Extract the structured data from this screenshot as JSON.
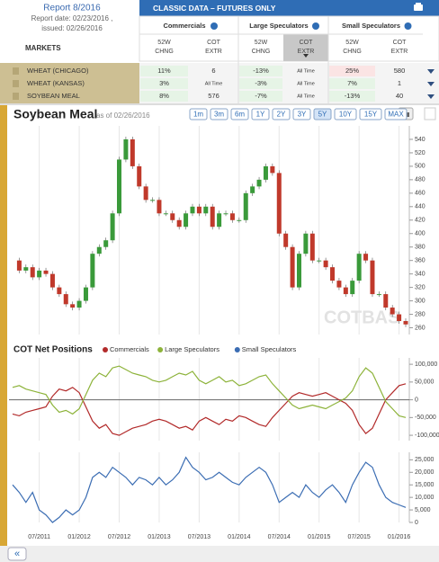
{
  "header": {
    "report": "Report 8/2016",
    "report_date": "Report date: 02/23/2016 ,",
    "issued": "issued: 02/26/2016",
    "markets": "MARKETS",
    "title": "CLASSIC DATA – FUTURES ONLY"
  },
  "table": {
    "groups": [
      "Commercials",
      "Large Speculators",
      "Small Speculators"
    ],
    "columns": [
      [
        "52W",
        "CHNG"
      ],
      [
        "COT",
        "EXTR"
      ],
      [
        "52W",
        "CHNG"
      ],
      [
        "COT",
        "EXTR"
      ],
      [
        "52W",
        "CHNG"
      ],
      [
        "COT",
        "EXTR"
      ]
    ],
    "rows": [
      {
        "market": "WHEAT (CHICAGO)",
        "cells": [
          "11%",
          "6",
          "-13%",
          "All Time",
          "25%",
          "580"
        ]
      },
      {
        "market": "WHEAT (KANSAS)",
        "cells": [
          "3%",
          "All Time",
          "-3%",
          "All Time",
          "7%",
          "1"
        ]
      },
      {
        "market": "SOYBEAN MEAL",
        "cells": [
          "8%",
          "576",
          "-7%",
          "All Time",
          "-13%",
          "40"
        ]
      }
    ]
  },
  "toolbar": {
    "title": "Soybean Meal",
    "as_of": "as of 02/26/2016",
    "ranges": [
      "1m",
      "3m",
      "6m",
      "1Y",
      "2Y",
      "3Y",
      "5Y",
      "10Y",
      "15Y",
      "MAX"
    ],
    "active_range": "5Y",
    "nav": "«"
  },
  "chart_data": [
    {
      "type": "candlestick",
      "x": [
        "03/2011",
        "04/2011",
        "05/2011",
        "06/2011",
        "07/2011",
        "08/2011",
        "09/2011",
        "10/2011",
        "11/2011",
        "12/2011",
        "01/2012",
        "02/2012",
        "03/2012",
        "04/2012",
        "05/2012",
        "06/2012",
        "07/2012",
        "08/2012",
        "09/2012",
        "10/2012",
        "11/2012",
        "12/2012",
        "01/2013",
        "02/2013",
        "03/2013",
        "04/2013",
        "05/2013",
        "06/2013",
        "07/2013",
        "08/2013",
        "09/2013",
        "10/2013",
        "11/2013",
        "12/2013",
        "01/2014",
        "02/2014",
        "03/2014",
        "04/2014",
        "05/2014",
        "06/2014",
        "07/2014",
        "08/2014",
        "09/2014",
        "10/2014",
        "11/2014",
        "12/2014",
        "01/2015",
        "02/2015",
        "03/2015",
        "04/2015",
        "05/2015",
        "06/2015",
        "07/2015",
        "08/2015",
        "09/2015",
        "10/2015",
        "11/2015",
        "12/2015",
        "01/2016",
        "02/2016"
      ],
      "values": [
        360,
        345,
        350,
        335,
        345,
        340,
        320,
        310,
        295,
        290,
        300,
        320,
        370,
        380,
        390,
        430,
        510,
        540,
        500,
        470,
        450,
        450,
        430,
        430,
        420,
        410,
        430,
        440,
        430,
        440,
        410,
        430,
        430,
        420,
        420,
        460,
        470,
        480,
        500,
        490,
        400,
        380,
        320,
        370,
        400,
        360,
        360,
        350,
        330,
        320,
        310,
        330,
        370,
        360,
        310,
        310,
        290,
        280,
        270,
        265
      ],
      "up_color": "#3a9a3a",
      "down_color": "#c0392b",
      "ylim": [
        250,
        560
      ],
      "yticks": [
        260,
        280,
        300,
        320,
        340,
        360,
        380,
        400,
        420,
        440,
        460,
        480,
        500,
        520,
        540
      ],
      "watermark": "COTBAS"
    },
    {
      "type": "line",
      "title": "COT Net Positions",
      "series": [
        {
          "name": "Commercials",
          "color": "#b22a2a",
          "values": [
            -40000,
            -45000,
            -35000,
            -30000,
            -25000,
            -20000,
            10000,
            30000,
            25000,
            35000,
            20000,
            -20000,
            -60000,
            -80000,
            -70000,
            -95000,
            -100000,
            -90000,
            -80000,
            -75000,
            -70000,
            -60000,
            -55000,
            -60000,
            -70000,
            -80000,
            -75000,
            -85000,
            -60000,
            -50000,
            -60000,
            -70000,
            -55000,
            -60000,
            -45000,
            -50000,
            -60000,
            -70000,
            -75000,
            -50000,
            -30000,
            -10000,
            10000,
            20000,
            15000,
            10000,
            15000,
            20000,
            10000,
            0,
            -10000,
            -30000,
            -70000,
            -95000,
            -80000,
            -40000,
            0,
            20000,
            40000,
            45000
          ]
        },
        {
          "name": "Large Speculators",
          "color": "#8db33a",
          "values": [
            35000,
            40000,
            30000,
            25000,
            20000,
            15000,
            -15000,
            -35000,
            -30000,
            -40000,
            -25000,
            15000,
            55000,
            75000,
            65000,
            90000,
            95000,
            85000,
            75000,
            70000,
            65000,
            55000,
            50000,
            55000,
            65000,
            75000,
            70000,
            80000,
            55000,
            45000,
            55000,
            65000,
            50000,
            55000,
            40000,
            45000,
            55000,
            65000,
            70000,
            45000,
            25000,
            5000,
            -15000,
            -25000,
            -20000,
            -15000,
            -20000,
            -25000,
            -15000,
            -5000,
            5000,
            25000,
            65000,
            90000,
            75000,
            35000,
            -5000,
            -25000,
            -45000,
            -50000
          ]
        }
      ],
      "ylim": [
        -115000,
        118000
      ],
      "yticks": [
        {
          "value": 100000,
          "label": "100,000"
        },
        {
          "value": 50000,
          "label": "50,000"
        },
        0,
        {
          "value": -50000,
          "label": "-50,000"
        },
        {
          "value": -100000,
          "label": "-100,000"
        }
      ]
    },
    {
      "type": "line",
      "series": [
        {
          "name": "Small Speculators",
          "color": "#3b6db3",
          "values": [
            15000,
            12000,
            8000,
            12000,
            5000,
            3000,
            0,
            2000,
            5000,
            3000,
            5000,
            10000,
            18000,
            20000,
            18000,
            22000,
            20000,
            18000,
            15000,
            18000,
            17000,
            15000,
            18000,
            15000,
            17000,
            20000,
            26000,
            22000,
            20000,
            17000,
            18000,
            20000,
            18000,
            16000,
            15000,
            18000,
            20000,
            22000,
            20000,
            15000,
            8000,
            10000,
            12000,
            10000,
            15000,
            12000,
            10000,
            13000,
            15000,
            12000,
            8000,
            15000,
            20000,
            24000,
            22000,
            15000,
            10000,
            8000,
            7000,
            6000
          ]
        }
      ],
      "ylim": [
        0,
        28000
      ],
      "yticks": [
        {
          "value": 25000,
          "label": "25,000"
        },
        {
          "value": 20000,
          "label": "20,000"
        },
        {
          "value": 15000,
          "label": "15,000"
        },
        {
          "value": 10000,
          "label": "10,000"
        },
        {
          "value": 5000,
          "label": "5,000"
        },
        0
      ],
      "xticks": [
        "07/2011",
        "01/2012",
        "07/2012",
        "01/2013",
        "07/2013",
        "01/2014",
        "07/2014",
        "01/2015",
        "07/2015",
        "01/2016"
      ]
    }
  ]
}
